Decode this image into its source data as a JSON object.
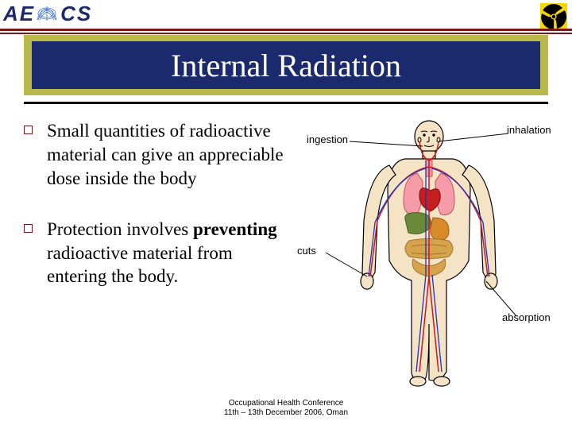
{
  "header": {
    "logo_parts": {
      "a": "A",
      "e": "E",
      "c": "C",
      "s": "S"
    },
    "rule_color_dark": "#7a1818",
    "radiation_icon_bg": "#f6d800",
    "radiation_icon_fg": "#000000"
  },
  "title": {
    "text": "Internal Radiation",
    "band_color": "#b9b84a",
    "inner_color": "#1a2a6c",
    "text_color": "#ffffff",
    "fontsize": 40
  },
  "bullets": [
    {
      "html": "Small quantities of radioactive material can give an appreciable dose inside the body"
    },
    {
      "html": "Protection involves <b>preventing</b> radioactive material from entering the body."
    }
  ],
  "figure": {
    "labels": {
      "ingestion": "ingestion",
      "inhalation": "inhalation",
      "cuts": "cuts",
      "absorption": "absorption"
    },
    "body_outline": "#000000",
    "skin_fill": "#f5e3c6",
    "lung_color": "#f59ca8",
    "heart_color": "#c41e1e",
    "liver_color": "#6a8a3a",
    "stomach_color": "#d88a2a",
    "intestine_color": "#d6a24a",
    "artery_color": "#d01818",
    "vein_color": "#2030c0"
  },
  "footer": {
    "line1": "Occupational Health Conference",
    "line2": "11th – 13th December 2006, Oman"
  }
}
